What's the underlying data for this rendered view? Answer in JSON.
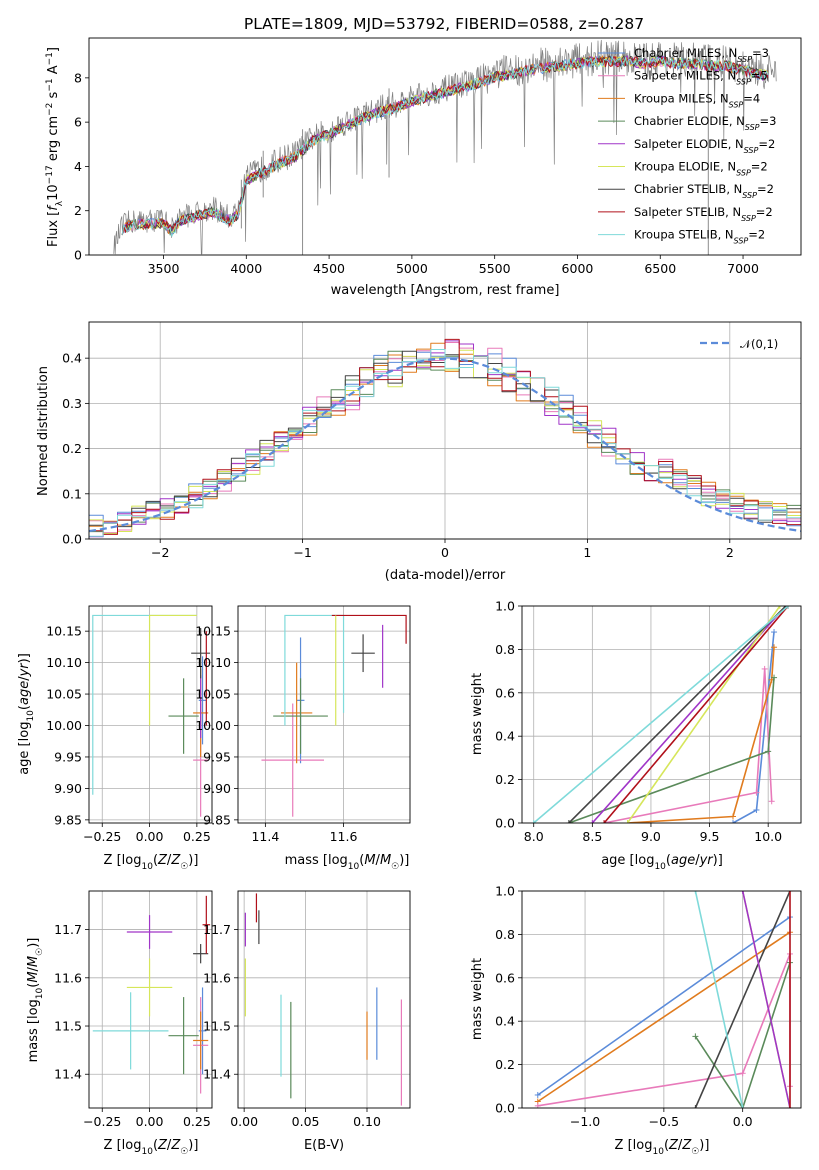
{
  "chart_data": [
    {
      "type": "line",
      "title": "PLATE=1809, MJD=53792, FIBERID=0588, z=0.287",
      "xlabel": "wavelength [Angstrom, rest frame]",
      "ylabel": "Flux [f_λ 10^-17 erg cm^-2 s^-1 A^-1]",
      "xlim": [
        3050,
        7350
      ],
      "ylim": [
        0,
        9.8
      ],
      "xticks": [
        3500,
        4000,
        4500,
        5000,
        5500,
        6000,
        6500,
        7000
      ],
      "yticks": [
        0,
        2,
        4,
        6,
        8
      ],
      "grid": false,
      "legend_location": "upper right",
      "data_curve": {
        "x": [
          3200,
          3250,
          3300,
          3400,
          3500,
          3550,
          3600,
          3700,
          3800,
          3900,
          3950,
          4000,
          4100,
          4200,
          4300,
          4400,
          4500,
          4600,
          4700,
          4800,
          4900,
          5000,
          5100,
          5200,
          5300,
          5400,
          5500,
          5600,
          5700,
          5800,
          5900,
          6000,
          6100,
          6200,
          6300,
          6400,
          6500,
          6600,
          6700,
          6800,
          6900,
          7000,
          7100,
          7200
        ],
        "y": [
          0.3,
          1.3,
          1.5,
          1.55,
          1.6,
          1.2,
          1.7,
          1.9,
          2.1,
          1.7,
          2.0,
          3.5,
          3.9,
          4.3,
          4.6,
          5.3,
          5.6,
          6.0,
          6.3,
          6.6,
          6.8,
          7.1,
          7.3,
          7.5,
          7.7,
          7.9,
          8.2,
          8.3,
          8.5,
          8.6,
          8.7,
          8.8,
          8.9,
          8.9,
          8.9,
          8.8,
          8.9,
          8.8,
          8.8,
          8.7,
          8.7,
          8.5,
          8.3,
          8.2
        ]
      },
      "series": [
        {
          "name": "Chabrier MILES, N_SSP=3",
          "color": "#5b8bd9"
        },
        {
          "name": "Salpeter MILES, N_SSP=5",
          "color": "#e87aba"
        },
        {
          "name": "Kroupa MILES, N_SSP=4",
          "color": "#e07b1e"
        },
        {
          "name": "Chabrier ELODIE, N_SSP=3",
          "color": "#5a8a5a"
        },
        {
          "name": "Salpeter ELODIE, N_SSP=2",
          "color": "#a035c8"
        },
        {
          "name": "Kroupa ELODIE, N_SSP=2",
          "color": "#d6e65a"
        },
        {
          "name": "Chabrier STELIB, N_SSP=2",
          "color": "#444444"
        },
        {
          "name": "Salpeter STELIB, N_SSP=2",
          "color": "#b0101a"
        },
        {
          "name": "Kroupa STELIB, N_SSP=2",
          "color": "#7fdada"
        }
      ]
    },
    {
      "type": "step",
      "xlabel": "(data-model)/error",
      "ylabel": "Normed distribution",
      "xlim": [
        -2.5,
        2.5
      ],
      "ylim": [
        0,
        0.48
      ],
      "xticks": [
        -2,
        -1,
        0,
        1,
        2
      ],
      "yticks": [
        0.0,
        0.1,
        0.2,
        0.3,
        0.4
      ],
      "grid": true,
      "legend_location": "upper right",
      "reference_curve": {
        "name": "𝒩(0,1)",
        "color": "#5b8bd9",
        "style": "dashed"
      }
    },
    {
      "type": "errorbar",
      "xlabel": "Z [log10(Z/Z☉)]",
      "ylabel": "age  [log10(age/yr)]",
      "xlim": [
        -0.32,
        0.33
      ],
      "ylim": [
        9.845,
        10.19
      ],
      "xticks": [
        -0.25,
        0.0,
        0.25
      ],
      "yticks": [
        9.85,
        9.9,
        9.95,
        10.0,
        10.05,
        10.1,
        10.15
      ],
      "grid": true,
      "points": [
        {
          "x": 0.28,
          "y": 10.04,
          "xerr": 0.02,
          "yerr": 0.07,
          "color": "#5b8bd9"
        },
        {
          "x": 0.27,
          "y": 9.945,
          "xerr": 0.04,
          "yerr": 0.09,
          "color": "#e87aba"
        },
        {
          "x": 0.27,
          "y": 10.02,
          "xerr": 0.04,
          "yerr": 0.07,
          "color": "#e07b1e"
        },
        {
          "x": 0.18,
          "y": 10.015,
          "xerr": 0.08,
          "yerr": 0.06,
          "color": "#5a8a5a"
        },
        {
          "x": 0.27,
          "y": 10.03,
          "xerr": 0.0,
          "yerr": 0.05,
          "color": "#a035c8"
        },
        {
          "x": 0.27,
          "y": 10.115,
          "xerr": 0.05,
          "yerr": 0.04,
          "color": "#444444"
        }
      ]
    },
    {
      "type": "errorbar",
      "xlabel": "mass [log10(M/M☉)]",
      "ylabel": "",
      "xlim": [
        11.33,
        11.77
      ],
      "ylim": [
        9.845,
        10.19
      ],
      "xticks": [
        11.4,
        11.6
      ],
      "yticks": [
        9.85,
        9.9,
        9.95,
        10.0,
        10.05,
        10.1,
        10.15
      ],
      "grid": true,
      "points": [
        {
          "x": 11.49,
          "y": 10.04,
          "xerr": 0.01,
          "yerr": 0.1,
          "color": "#5b8bd9"
        },
        {
          "x": 11.47,
          "y": 9.945,
          "xerr": 0.08,
          "yerr": 0.09,
          "color": "#e87aba"
        },
        {
          "x": 11.48,
          "y": 10.02,
          "xerr": 0.04,
          "yerr": 0.08,
          "color": "#e07b1e"
        },
        {
          "x": 11.49,
          "y": 10.015,
          "xerr": 0.07,
          "yerr": 0.06,
          "color": "#5a8a5a"
        },
        {
          "x": 11.7,
          "y": 10.11,
          "xerr": 0.0,
          "yerr": 0.05,
          "color": "#a035c8"
        },
        {
          "x": 11.65,
          "y": 10.115,
          "xerr": 0.03,
          "yerr": 0.03,
          "color": "#444444"
        }
      ]
    },
    {
      "type": "line",
      "xlabel": "age  [log10(age/yr)]",
      "ylabel": "mass weight",
      "xlim": [
        7.9,
        10.28
      ],
      "ylim": [
        0,
        1.0
      ],
      "xticks": [
        8.0,
        8.5,
        9.0,
        9.5,
        10.0
      ],
      "yticks": [
        0.0,
        0.2,
        0.4,
        0.6,
        0.8,
        1.0
      ],
      "grid": true,
      "series": [
        {
          "color": "#5b8bd9",
          "x": [
            9.7,
            9.9,
            10.05
          ],
          "y": [
            0.0,
            0.06,
            0.88
          ]
        },
        {
          "color": "#e87aba",
          "x": [
            8.6,
            9.9,
            9.97,
            10.03
          ],
          "y": [
            0.0,
            0.14,
            0.71,
            0.1
          ]
        },
        {
          "color": "#e07b1e",
          "x": [
            8.8,
            9.7,
            10.03,
            10.05
          ],
          "y": [
            0.0,
            0.03,
            0.66,
            0.81
          ]
        },
        {
          "color": "#5a8a5a",
          "x": [
            8.3,
            10.0,
            10.05
          ],
          "y": [
            0.0,
            0.33,
            0.67
          ]
        },
        {
          "color": "#a035c8",
          "x": [
            8.5,
            10.15
          ],
          "y": [
            0.0,
            1.0
          ]
        },
        {
          "color": "#d6e65a",
          "x": [
            8.8,
            10.1
          ],
          "y": [
            0.0,
            1.0
          ]
        },
        {
          "color": "#444444",
          "x": [
            8.3,
            10.15
          ],
          "y": [
            0.0,
            1.0
          ]
        },
        {
          "color": "#b0101a",
          "x": [
            8.6,
            10.17
          ],
          "y": [
            0.0,
            1.0
          ]
        },
        {
          "color": "#7fdada",
          "x": [
            8.0,
            10.17
          ],
          "y": [
            0.0,
            1.0
          ]
        }
      ]
    },
    {
      "type": "errorbar",
      "xlabel": "Z [log10(Z/Z☉)]",
      "ylabel": "mass [log10(M/M☉)]",
      "xlim": [
        -0.32,
        0.33
      ],
      "ylim": [
        11.33,
        11.78
      ],
      "xticks": [
        -0.25,
        0.0,
        0.25
      ],
      "yticks": [
        11.4,
        11.5,
        11.6,
        11.7
      ],
      "grid": true,
      "points": [
        {
          "x": 0.28,
          "y": 11.49,
          "xerr": 0.02,
          "yerr": 0.09,
          "color": "#5b8bd9"
        },
        {
          "x": 0.27,
          "y": 11.46,
          "xerr": 0.04,
          "yerr": 0.1,
          "color": "#e87aba"
        },
        {
          "x": 0.27,
          "y": 11.47,
          "xerr": 0.04,
          "yerr": 0.06,
          "color": "#e07b1e"
        },
        {
          "x": 0.18,
          "y": 11.48,
          "xerr": 0.08,
          "yerr": 0.08,
          "color": "#5a8a5a"
        },
        {
          "x": 0.0,
          "y": 11.695,
          "xerr": 0.12,
          "yerr": 0.035,
          "color": "#a035c8"
        },
        {
          "x": 0.0,
          "y": 11.58,
          "xerr": 0.12,
          "yerr": 0.06,
          "color": "#d6e65a"
        },
        {
          "x": 0.27,
          "y": 11.65,
          "xerr": 0.04,
          "yerr": 0.02,
          "color": "#444444"
        },
        {
          "x": 0.3,
          "y": 11.71,
          "xerr": 0.02,
          "yerr": 0.06,
          "color": "#b0101a"
        },
        {
          "x": -0.1,
          "y": 11.49,
          "xerr": 0.2,
          "yerr": 0.08,
          "color": "#7fdada"
        }
      ]
    },
    {
      "type": "errorbar",
      "xlabel": "E(B-V)",
      "ylabel": "",
      "xlim": [
        -0.005,
        0.135
      ],
      "ylim": [
        11.33,
        11.78
      ],
      "xticks": [
        0.0,
        0.05,
        0.1
      ],
      "yticks": [
        11.4,
        11.5,
        11.6,
        11.7
      ],
      "grid": true,
      "points": [
        {
          "x": 0.108,
          "y": 11.505,
          "xerr": 0.0,
          "yerr": 0.075,
          "color": "#5b8bd9"
        },
        {
          "x": 0.128,
          "y": 11.445,
          "xerr": 0.0,
          "yerr": 0.11,
          "color": "#e87aba"
        },
        {
          "x": 0.1,
          "y": 11.48,
          "xerr": 0.0,
          "yerr": 0.05,
          "color": "#e07b1e"
        },
        {
          "x": 0.038,
          "y": 11.45,
          "xerr": 0.0,
          "yerr": 0.1,
          "color": "#5a8a5a"
        },
        {
          "x": 0.001,
          "y": 11.7,
          "xerr": 0.0,
          "yerr": 0.035,
          "color": "#a035c8"
        },
        {
          "x": 0.001,
          "y": 11.58,
          "xerr": 0.0,
          "yerr": 0.06,
          "color": "#d6e65a"
        },
        {
          "x": 0.012,
          "y": 11.705,
          "xerr": 0.0,
          "yerr": 0.035,
          "color": "#444444"
        },
        {
          "x": 0.01,
          "y": 11.745,
          "xerr": 0.0,
          "yerr": 0.03,
          "color": "#b0101a"
        },
        {
          "x": 0.03,
          "y": 11.48,
          "xerr": 0.0,
          "yerr": 0.085,
          "color": "#7fdada"
        }
      ]
    },
    {
      "type": "line",
      "xlabel": "Z [log10(Z/Z☉)]",
      "ylabel": "mass weight",
      "xlim": [
        -1.4,
        0.37
      ],
      "ylim": [
        0,
        1.0
      ],
      "xticks": [
        -1.0,
        -0.5,
        0.0
      ],
      "yticks": [
        0.0,
        0.2,
        0.4,
        0.6,
        0.8,
        1.0
      ],
      "grid": true,
      "series": [
        {
          "color": "#5b8bd9",
          "x": [
            -1.3,
            0.3
          ],
          "y": [
            0.06,
            0.88
          ]
        },
        {
          "color": "#e07b1e",
          "x": [
            -1.3,
            0.3
          ],
          "y": [
            0.03,
            0.81
          ]
        },
        {
          "color": "#e87aba",
          "x": [
            -1.3,
            0.0,
            0.3,
            0.3
          ],
          "y": [
            0.01,
            0.16,
            0.71,
            0.1
          ]
        },
        {
          "color": "#5a8a5a",
          "x": [
            -0.3,
            0.0,
            0.3
          ],
          "y": [
            0.33,
            0.0,
            0.67
          ]
        },
        {
          "color": "#444444",
          "x": [
            -0.3,
            0.3
          ],
          "y": [
            0.0,
            1.0
          ]
        },
        {
          "color": "#7fdada",
          "x": [
            -0.3,
            0.0
          ],
          "y": [
            1.0,
            0.0
          ]
        },
        {
          "color": "#d6e65a",
          "x": [
            0.0,
            0.3
          ],
          "y": [
            1.0,
            0.0
          ]
        },
        {
          "color": "#a035c8",
          "x": [
            0.0,
            0.3
          ],
          "y": [
            1.0,
            0.0
          ]
        },
        {
          "color": "#b0101a",
          "x": [
            0.3,
            0.3
          ],
          "y": [
            0.0,
            1.0
          ]
        }
      ]
    }
  ]
}
